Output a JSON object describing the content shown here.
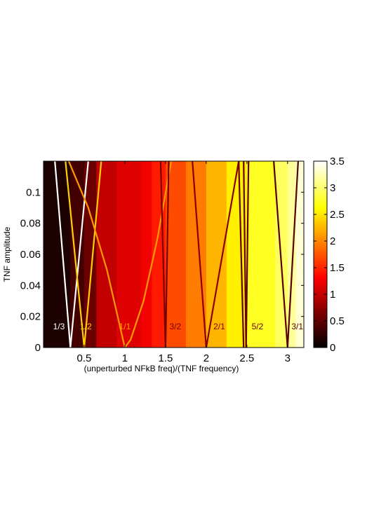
{
  "chart_data": {
    "type": "heatmap",
    "title": "",
    "xlabel": "(unperturbed NFkB freq)/(TNF frequency)",
    "ylabel": "TNF amplitude",
    "xlim": [
      0.0,
      3.2
    ],
    "ylim": [
      0,
      0.12
    ],
    "xticks": [
      "0.5",
      "1",
      "1.5",
      "2",
      "2.5",
      "3"
    ],
    "xtick_values": [
      0.5,
      1,
      1.5,
      2,
      2.5,
      3
    ],
    "yticks": [
      "0",
      "0.02",
      "0.04",
      "0.06",
      "0.08",
      "0.1"
    ],
    "ytick_values": [
      0,
      0.02,
      0.04,
      0.06,
      0.08,
      0.1
    ],
    "colorbar": {
      "range": [
        0,
        3.5
      ],
      "ticks": [
        "0",
        "0.5",
        "1",
        "1.5",
        "2",
        "2.5",
        "3",
        "3.5"
      ],
      "tick_values": [
        0,
        0.5,
        1,
        1.5,
        2,
        2.5,
        3,
        3.5
      ],
      "colormap": "hot"
    },
    "heatmap_columns": [
      {
        "x0": 0.0,
        "x1": 0.33,
        "value": 0.15
      },
      {
        "x0": 0.33,
        "x1": 0.5,
        "value": 0.35
      },
      {
        "x0": 0.5,
        "x1": 0.65,
        "value": 0.55
      },
      {
        "x0": 0.65,
        "x1": 0.9,
        "value": 1.0
      },
      {
        "x0": 0.9,
        "x1": 1.2,
        "value": 1.15
      },
      {
        "x0": 1.2,
        "x1": 1.33,
        "value": 1.25
      },
      {
        "x0": 1.33,
        "x1": 1.5,
        "value": 1.45
      },
      {
        "x0": 1.5,
        "x1": 1.75,
        "value": 1.7
      },
      {
        "x0": 1.75,
        "x1": 2.0,
        "value": 1.95
      },
      {
        "x0": 2.0,
        "x1": 2.25,
        "value": 2.25
      },
      {
        "x0": 2.25,
        "x1": 2.5,
        "value": 2.55
      },
      {
        "x0": 2.5,
        "x1": 2.85,
        "value": 2.75
      },
      {
        "x0": 2.85,
        "x1": 3.0,
        "value": 2.95
      },
      {
        "x0": 3.0,
        "x1": 3.1,
        "value": 3.15
      },
      {
        "x0": 3.1,
        "x1": 3.2,
        "value": 3.35
      }
    ],
    "series": [
      {
        "name": "1/3",
        "color": "#ffffff",
        "label_x": 0.19,
        "label_y": 0.0135,
        "x": [
          0.14,
          0.33,
          0.55
        ],
        "y": [
          0.12,
          0,
          0.12
        ]
      },
      {
        "name": "1/2",
        "color": "#ffd000",
        "label_x": 0.52,
        "label_y": 0.0135,
        "x": [
          0.27,
          0.5,
          0.71
        ],
        "y": [
          0.12,
          0,
          0.12
        ]
      },
      {
        "name": "1/1",
        "color": "#ff9a00",
        "label_x": 1.0,
        "label_y": 0.0135,
        "x": [
          0.31,
          0.55,
          0.78,
          1.0,
          1.07,
          1.23,
          1.4,
          1.57
        ],
        "y": [
          0.12,
          0.09,
          0.05,
          0,
          0.005,
          0.03,
          0.07,
          0.12
        ]
      },
      {
        "name": "3/2",
        "color": "#7a0000",
        "label_x": 1.62,
        "label_y": 0.0135,
        "x": [
          1.44,
          1.5,
          1.54
        ],
        "y": [
          0.12,
          0,
          0.12
        ]
      },
      {
        "name": "2/1",
        "color": "#8a0000",
        "label_x": 2.16,
        "label_y": 0.0135,
        "x": [
          2.0,
          2.4
        ],
        "y": [
          0,
          0.12
        ]
      },
      {
        "name": "5/2",
        "color": "#6a0000",
        "label_x": 2.63,
        "label_y": 0.0135,
        "x": [
          2.46,
          2.49,
          2.52
        ],
        "y": [
          0.12,
          0,
          0.12
        ]
      },
      {
        "name": "3/1",
        "color": "#5a0000",
        "label_x": 3.12,
        "label_y": 0.0135,
        "x": [
          2.83,
          3.0,
          3.13
        ],
        "y": [
          0.12,
          0,
          0.12
        ]
      }
    ],
    "extra_lines": [
      {
        "color": "#8a0000",
        "x": [
          1.83,
          2.0
        ],
        "y": [
          0.12,
          0
        ]
      },
      {
        "color": "#6a0000",
        "x": [
          2.4,
          2.46
        ],
        "y": [
          0.12,
          0
        ]
      }
    ],
    "grid": false,
    "legend": "none"
  }
}
